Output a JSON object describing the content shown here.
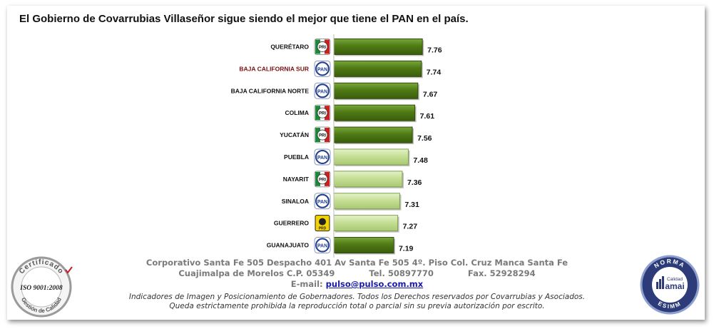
{
  "title": "El Gobierno de Covarrubias Villaseñor sigue siendo el mejor que tiene el PAN en el país.",
  "colors": {
    "dark_bar": "#4f7a14",
    "light_bar": "#c5df94",
    "highlight_label": "#7a1010",
    "pan_blue": "#1f3d8f",
    "pri_green": "#1a8a3a",
    "pri_red": "#cc1f1f",
    "prd_yellow": "#f2d200"
  },
  "chart_data": {
    "type": "bar",
    "orientation": "horizontal",
    "categories": [
      "QUERÉTARO",
      "BAJA CALIFORNIA SUR",
      "BAJA CALIFORNIA NORTE",
      "COLIMA",
      "YUCATÁN",
      "PUEBLA",
      "NAYARIT",
      "SINALOA",
      "GUERRERO",
      "GUANAJUATO"
    ],
    "values": [
      7.76,
      7.74,
      7.67,
      7.61,
      7.56,
      7.48,
      7.36,
      7.31,
      7.27,
      7.19
    ],
    "value_labels": [
      "7.76",
      "7.74",
      "7.67",
      "7.61",
      "7.56",
      "7.48",
      "7.36",
      "7.31",
      "7.27",
      "7.19"
    ],
    "party_icons": [
      "pri-logo-icon",
      "pan-logo-icon",
      "pan-logo-icon",
      "pri-logo-icon",
      "pri-logo-icon",
      "pan-logo-icon",
      "pri-logo-icon",
      "pan-logo-icon",
      "prd-logo-icon",
      "pan-logo-icon"
    ],
    "party_text": [
      "PRI",
      "PAN",
      "PAN",
      "PRI",
      "PRI",
      "PAN",
      "PRI",
      "PAN",
      "PRD",
      "PAN"
    ],
    "bar_shade": [
      "dark",
      "dark",
      "dark",
      "dark",
      "dark",
      "light",
      "light",
      "light",
      "light",
      "dark"
    ],
    "highlight_category": "BAJA CALIFORNIA SUR",
    "xlim": [
      6.0,
      7.8
    ],
    "grid": false,
    "legend": "none"
  },
  "footer": {
    "address_line1": "Corporativo Santa Fe 505 Despacho 401 Av Santa Fe 505 4º. Piso Col. Cruz Manca Santa Fe",
    "address_line2": "Cuajimalpa de Morelos C.P. 05349            Tel. 50897770            Fax. 52928294",
    "email_label": "E-mail:",
    "email": "pulso@pulso.com.mx",
    "disclaimer1": "Indicadores de Imagen y Posicionamiento de Gobernadores. Todos los Derechos reservados por Covarrubias y Asociados.",
    "disclaimer2": "Queda estrictamente prohibida la reproducción total o parcial sin su previa autorización por escrito."
  },
  "seals": {
    "iso_top": "Certificado",
    "iso_middle": "ISO 9001:2008",
    "iso_bottom": "Gestión de Calidad",
    "amai_top": "NORMA",
    "amai_small": "Calidad",
    "amai_brand": "amai",
    "amai_bottom": "ESIMM"
  }
}
